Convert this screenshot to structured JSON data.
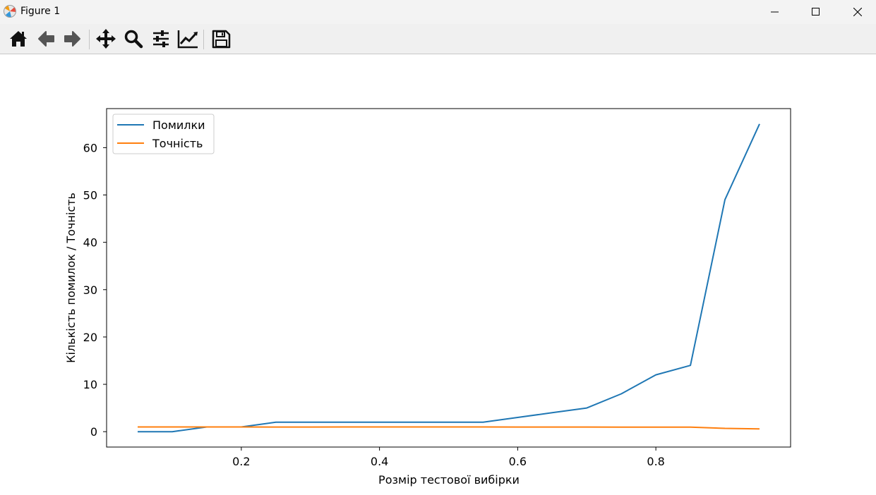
{
  "window": {
    "title": "Figure 1",
    "controls": [
      "minimize",
      "maximize",
      "close"
    ]
  },
  "toolbar": {
    "buttons": [
      {
        "name": "home",
        "icon": "home-icon"
      },
      {
        "name": "back",
        "icon": "arrow-left-icon"
      },
      {
        "name": "forward",
        "icon": "arrow-right-icon"
      },
      {
        "name": "pan",
        "icon": "move-icon"
      },
      {
        "name": "zoom",
        "icon": "magnifier-icon"
      },
      {
        "name": "configure-subplots",
        "icon": "sliders-icon"
      },
      {
        "name": "edit-axis",
        "icon": "line-chart-icon"
      },
      {
        "name": "save",
        "icon": "floppy-disk-icon"
      }
    ]
  },
  "chart_data": {
    "type": "line",
    "title": "",
    "xlabel": "Розмір тестової вибірки",
    "ylabel": "Кількість помилок / Точність",
    "xlim": [
      0.005,
      0.995
    ],
    "ylim": [
      -3.25,
      68.25
    ],
    "xticks": [
      "0.2",
      "0.4",
      "0.6",
      "0.8"
    ],
    "xtick_values": [
      0.2,
      0.4,
      0.6,
      0.8
    ],
    "yticks": [
      "0",
      "10",
      "20",
      "30",
      "40",
      "50",
      "60"
    ],
    "ytick_values": [
      0,
      10,
      20,
      30,
      40,
      50,
      60
    ],
    "legend_position": "upper-left",
    "grid": false,
    "x": [
      0.05,
      0.1,
      0.15,
      0.2,
      0.25,
      0.3,
      0.35,
      0.4,
      0.45,
      0.5,
      0.55,
      0.6,
      0.65,
      0.7,
      0.75,
      0.8,
      0.85,
      0.9,
      0.95
    ],
    "series": [
      {
        "name": "Помилки",
        "color": "#1f77b4",
        "values": [
          0,
          0,
          1,
          1,
          2,
          2,
          2,
          2,
          2,
          2,
          2,
          3,
          4,
          5,
          8,
          12,
          14,
          49,
          65
        ]
      },
      {
        "name": "Точність",
        "color": "#ff7f0e",
        "values": [
          1.0,
          1.0,
          0.99,
          0.99,
          0.98,
          0.98,
          0.99,
          0.99,
          0.99,
          0.99,
          0.99,
          0.98,
          0.98,
          0.98,
          0.97,
          0.96,
          0.96,
          0.7,
          0.6
        ]
      }
    ]
  }
}
